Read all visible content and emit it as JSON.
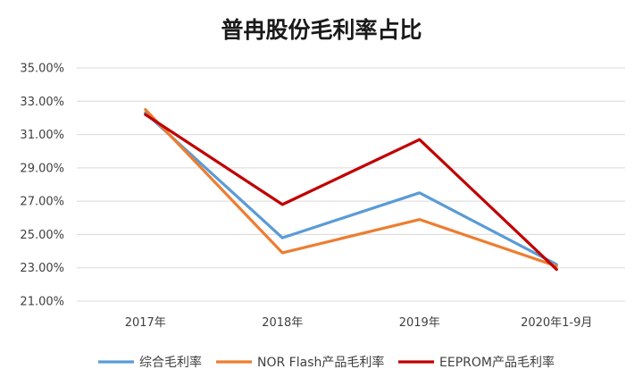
{
  "chart_data": {
    "type": "line",
    "title": "普冉股份毛利率占比",
    "categories": [
      "2017年",
      "2018年",
      "2019年",
      "2020年1-9月"
    ],
    "y_tick_labels": [
      "35.00%",
      "33.00%",
      "31.00%",
      "29.00%",
      "27.00%",
      "25.00%",
      "23.00%",
      "21.00%"
    ],
    "ylim": [
      21,
      35
    ],
    "grid": true,
    "legend_position": "bottom",
    "series": [
      {
        "name": "综合毛利率",
        "color": "#5B9BD5",
        "values": [
          32.3,
          24.8,
          27.5,
          23.2
        ]
      },
      {
        "name": "NOR Flash产品毛利率",
        "color": "#ED7D31",
        "values": [
          32.5,
          23.9,
          25.9,
          23.1
        ]
      },
      {
        "name": "EEPROM产品毛利率",
        "color": "#C00000",
        "values": [
          32.2,
          26.8,
          30.7,
          22.9
        ]
      }
    ]
  }
}
